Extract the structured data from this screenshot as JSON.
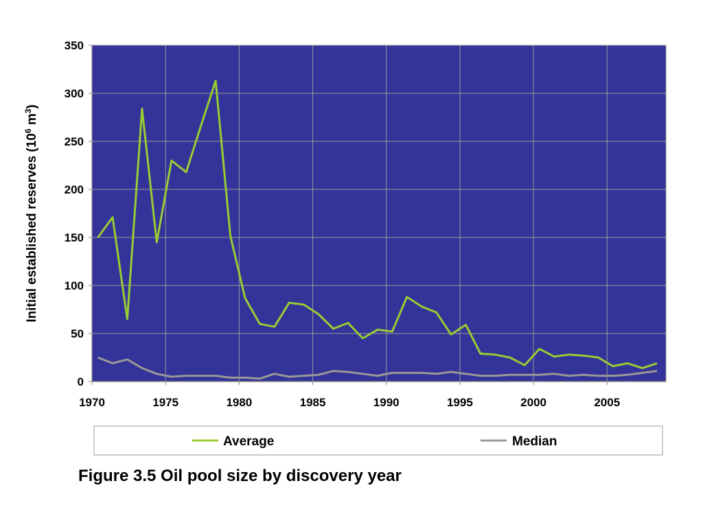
{
  "caption": "Figure 3.5 Oil pool size by discovery year",
  "chart_data": {
    "type": "line",
    "title": "",
    "xlabel": "",
    "ylabel": "Initial established reserves (10",
    "ylabel_sup1": "6",
    "ylabel_mid": " m",
    "ylabel_sup2": "3",
    "ylabel_end": ")",
    "xlim": [
      1970,
      2009
    ],
    "ylim": [
      0,
      350
    ],
    "x_ticks": [
      1970,
      1975,
      1980,
      1985,
      1990,
      1995,
      2000,
      2005
    ],
    "y_ticks": [
      0,
      50,
      100,
      150,
      200,
      250,
      300,
      350
    ],
    "grid": true,
    "plot_background": "#333399",
    "legend": "bottom",
    "x": [
      1970.4,
      1971.4,
      1972.4,
      1973.4,
      1974.4,
      1975.4,
      1976.4,
      1977.4,
      1978.4,
      1979.4,
      1980.4,
      1981.4,
      1982.4,
      1983.4,
      1984.4,
      1985.4,
      1986.4,
      1987.4,
      1988.4,
      1989.4,
      1990.4,
      1991.4,
      1992.4,
      1993.4,
      1994.4,
      1995.4,
      1996.4,
      1997.4,
      1998.4,
      1999.4,
      2000.4,
      2001.4,
      2002.4,
      2003.4,
      2004.4,
      2005.4,
      2006.4,
      2007.4,
      2008.4
    ],
    "series": [
      {
        "name": "Average",
        "color": "#99cc33",
        "values": [
          150,
          171,
          65,
          284,
          145,
          230,
          218,
          266,
          313,
          152,
          87,
          60,
          57,
          82,
          80,
          70,
          55,
          61,
          45,
          54,
          52,
          88,
          78,
          72,
          49,
          59,
          29,
          28,
          25,
          17,
          34,
          26,
          28,
          27,
          25,
          16,
          19,
          14,
          19
        ]
      },
      {
        "name": "Median",
        "color": "#999999",
        "values": [
          25,
          19,
          23,
          14,
          8,
          5,
          6,
          6,
          6,
          4,
          4,
          3,
          8,
          5,
          6,
          7,
          11,
          10,
          8,
          6,
          9,
          9,
          9,
          8,
          10,
          8,
          6,
          6,
          7,
          7,
          7,
          8,
          6,
          7,
          6,
          6,
          7,
          9,
          11
        ]
      }
    ]
  }
}
